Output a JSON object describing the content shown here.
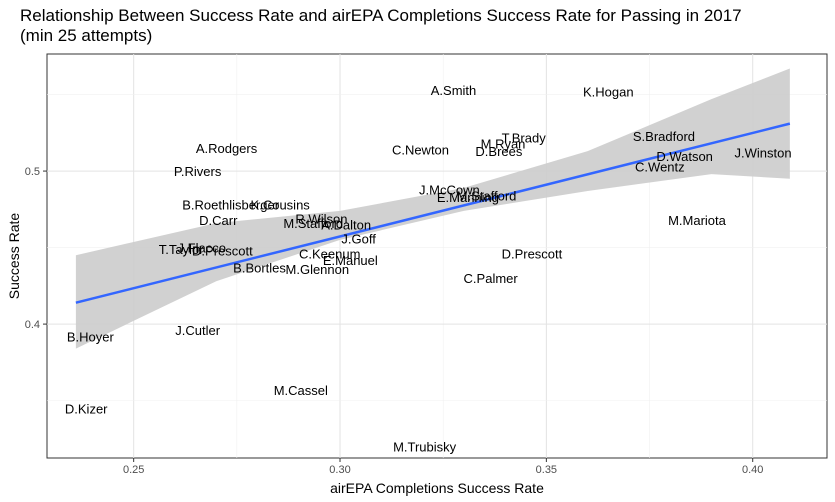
{
  "chart_data": {
    "type": "scatter",
    "title_line1": "Relationship Between Success Rate and airEPA Completions Success Rate for Passing in 2017",
    "title_line2": "(min 25 attempts)",
    "xlabel": "airEPA Completions Success Rate",
    "ylabel": "Success Rate",
    "xlim": [
      0.229,
      0.418
    ],
    "ylim": [
      0.3125,
      0.5765
    ],
    "x_ticks": [
      0.25,
      0.3,
      0.35,
      0.4
    ],
    "x_tick_labels": [
      "0.25",
      "0.30",
      "0.35",
      "0.40"
    ],
    "y_ticks": [
      0.4,
      0.5
    ],
    "y_tick_labels": [
      "0.4",
      "0.5"
    ],
    "grid": true,
    "points": [
      {
        "name": "A.Smith",
        "x": 0.3275,
        "y": 0.553
      },
      {
        "name": "K.Hogan",
        "x": 0.365,
        "y": 0.552
      },
      {
        "name": "T.Brady",
        "x": 0.3445,
        "y": 0.522
      },
      {
        "name": "M.Ryan",
        "x": 0.3395,
        "y": 0.518
      },
      {
        "name": "D.Brees",
        "x": 0.3385,
        "y": 0.513
      },
      {
        "name": "S.Bradford",
        "x": 0.3785,
        "y": 0.523
      },
      {
        "name": "A.Rodgers",
        "x": 0.2725,
        "y": 0.515
      },
      {
        "name": "C.Newton",
        "x": 0.3195,
        "y": 0.514
      },
      {
        "name": "D.Watson",
        "x": 0.3835,
        "y": 0.51
      },
      {
        "name": "J.Winston",
        "x": 0.4025,
        "y": 0.512
      },
      {
        "name": "C.Wentz",
        "x": 0.3775,
        "y": 0.503
      },
      {
        "name": "P.Rivers",
        "x": 0.2655,
        "y": 0.5
      },
      {
        "name": "J.McCown",
        "x": 0.3265,
        "y": 0.488
      },
      {
        "name": "E.Manning",
        "x": 0.331,
        "y": 0.483
      },
      {
        "name": "M.Stafford",
        "x": 0.3355,
        "y": 0.484
      },
      {
        "name": "B.Roethlisberger",
        "x": 0.2735,
        "y": 0.478
      },
      {
        "name": "K.Cousins",
        "x": 0.2855,
        "y": 0.478
      },
      {
        "name": "R.Wilson",
        "x": 0.2955,
        "y": 0.469
      },
      {
        "name": "D.Carr",
        "x": 0.2705,
        "y": 0.468
      },
      {
        "name": "M.Stafford",
        "x": 0.2935,
        "y": 0.466
      },
      {
        "name": "A.Dalton",
        "x": 0.3015,
        "y": 0.465
      },
      {
        "name": "M.Mariota",
        "x": 0.3865,
        "y": 0.468
      },
      {
        "name": "J.Goff",
        "x": 0.3045,
        "y": 0.456
      },
      {
        "name": "T.Taylor",
        "x": 0.2615,
        "y": 0.449
      },
      {
        "name": "J.Flacco",
        "x": 0.2665,
        "y": 0.45
      },
      {
        "name": "D.Prescott",
        "x": 0.2715,
        "y": 0.448
      },
      {
        "name": "C.Keenum",
        "x": 0.2975,
        "y": 0.446
      },
      {
        "name": "D.Prescott",
        "x": 0.3465,
        "y": 0.446
      },
      {
        "name": "E.Manuel",
        "x": 0.3025,
        "y": 0.442
      },
      {
        "name": "B.Bortles",
        "x": 0.2805,
        "y": 0.437
      },
      {
        "name": "M.Glennon",
        "x": 0.2945,
        "y": 0.436
      },
      {
        "name": "C.Palmer",
        "x": 0.3365,
        "y": 0.43
      },
      {
        "name": "B.Hoyer",
        "x": 0.2395,
        "y": 0.392
      },
      {
        "name": "J.Cutler",
        "x": 0.2655,
        "y": 0.396
      },
      {
        "name": "M.Cassel",
        "x": 0.2905,
        "y": 0.357
      },
      {
        "name": "D.Kizer",
        "x": 0.2385,
        "y": 0.345
      },
      {
        "name": "M.Trubisky",
        "x": 0.3205,
        "y": 0.32
      }
    ],
    "trend": {
      "x": [
        0.236,
        0.409
      ],
      "y": [
        0.414,
        0.531
      ],
      "ci_color": "#cccccc",
      "color": "#3366ff",
      "band_x": [
        0.236,
        0.27,
        0.3,
        0.33,
        0.36,
        0.39,
        0.409
      ],
      "band_lower": [
        0.384,
        0.428,
        0.455,
        0.474,
        0.487,
        0.498,
        0.495
      ],
      "band_upper": [
        0.445,
        0.466,
        0.474,
        0.489,
        0.513,
        0.547,
        0.567
      ]
    }
  }
}
